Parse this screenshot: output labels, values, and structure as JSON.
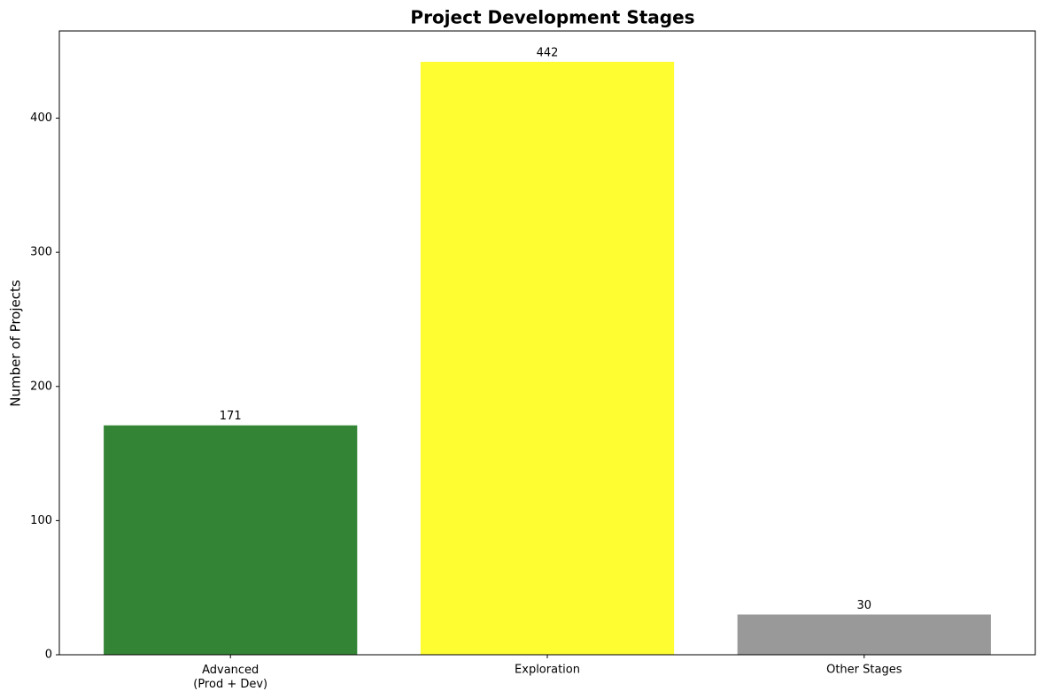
{
  "chart_data": {
    "type": "bar",
    "title": "Project Development Stages",
    "y_label": "Number of Projects",
    "categories": [
      "Advanced\n(Prod + Dev)",
      "Exploration",
      "Other Stages"
    ],
    "values": [
      171,
      442,
      30
    ],
    "colors": [
      "#338535",
      "#fdfd32",
      "#999999"
    ],
    "ylim": [
      0,
      465
    ],
    "yticks": [
      0,
      100,
      200,
      300,
      400
    ],
    "grid": false
  }
}
